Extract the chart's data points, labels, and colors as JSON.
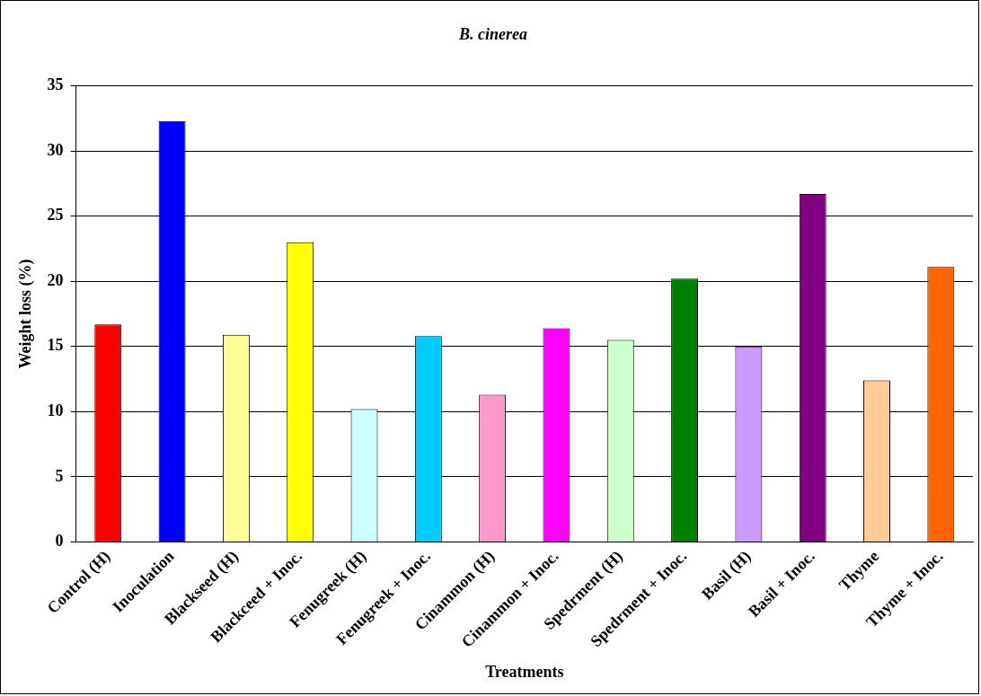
{
  "chart_data": {
    "type": "bar",
    "title": "B. cinerea",
    "xlabel": "Treatments",
    "ylabel": "Weight loss (%)",
    "categories": [
      "Control (H)",
      "Inoculation",
      "Blackseed (H)",
      "Blackceed + Inoc.",
      "Fenugreek (H)",
      "Fenugreek + Inoc.",
      "Cinammon (H)",
      "Cinammon + Inoc.",
      "Spedrment (H)",
      "Spedrment + Inoc.",
      "Basil (H)",
      "Basil + Inoc.",
      "Thyme",
      "Thyme + Inoc."
    ],
    "values": [
      16.7,
      32.3,
      15.9,
      23.0,
      10.2,
      15.8,
      11.3,
      16.4,
      15.5,
      20.2,
      15.0,
      26.7,
      12.4,
      21.1
    ],
    "colors": [
      "#ff0000",
      "#0000ff",
      "#ffff99",
      "#ffff00",
      "#ccffff",
      "#00ccff",
      "#ff99cc",
      "#ff00ff",
      "#ccffcc",
      "#008000",
      "#cc99ff",
      "#800080",
      "#ffcc99",
      "#ff6600"
    ],
    "ylim": [
      0,
      35
    ],
    "yticks": [
      0,
      5,
      10,
      15,
      20,
      25,
      30,
      35
    ],
    "grid": "y",
    "legend": false
  }
}
